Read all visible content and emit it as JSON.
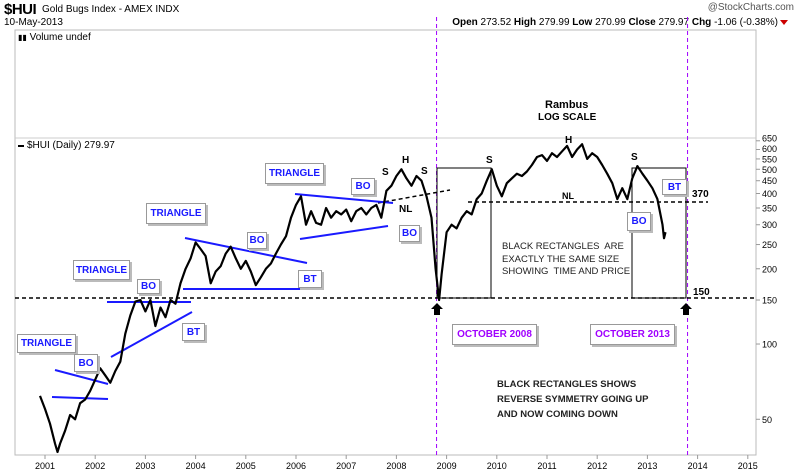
{
  "header": {
    "symbol": "$HUI",
    "name": "Gold Bugs Index - AMEX  INDX",
    "date": "10-May-2013",
    "copyright": "@StockCharts.com",
    "open_label": "Open",
    "open": "273.52",
    "high_label": "High",
    "high": "279.99",
    "low_label": "Low",
    "low": "270.99",
    "close_label": "Close",
    "close": "279.97",
    "chg_label": "Chg",
    "chg": "-1.06 (-0.38%)"
  },
  "volume_panel": {
    "label": "Volume undef"
  },
  "legend": {
    "label": "$HUI (Daily) 279.97"
  },
  "annotations": {
    "title": "Rambus",
    "subtitle": "LOG SCALE",
    "triangle": "TRIANGLE",
    "bo": "BO",
    "bt": "BT",
    "h": "H",
    "s": "S",
    "nl": "NL",
    "level_370": "370",
    "level_150": "150",
    "oct2008": "OCTOBER 2008",
    "oct2013": "OCTOBER 2013",
    "note1": "BLACK RECTANGLES  ARE\nEXACTLY THE SAME SIZE\nSHOWING  TIME AND PRICE",
    "note2": "BLACK RECTANGLES SHOWS\nREVERSE SYMMETRY GOING UP\nAND NOW COMING DOWN"
  },
  "colors": {
    "price": "#000000",
    "trendline": "#1a1aff",
    "event_line": "#a000ff",
    "grid": "#cccccc"
  },
  "chart_data": {
    "type": "line",
    "title": "$HUI Gold Bugs Index (Daily)",
    "yscale": "log",
    "ylim": [
      30,
      700
    ],
    "xlim": [
      2000.7,
      2015.3
    ],
    "x_ticks": [
      "2001",
      "2002",
      "2003",
      "2004",
      "2005",
      "2006",
      "2007",
      "2008",
      "2009",
      "2010",
      "2011",
      "2012",
      "2013",
      "2014",
      "2015"
    ],
    "y_ticks": [
      "50",
      "100",
      "150",
      "200",
      "250",
      "300",
      "350",
      "400",
      "450",
      "500",
      "550",
      "600",
      "650"
    ],
    "horizontal_levels": [
      370,
      150
    ],
    "event_dates": [
      2008.8,
      2013.8
    ],
    "series": [
      {
        "name": "$HUI",
        "points": [
          [
            2000.9,
            62
          ],
          [
            2001.0,
            55
          ],
          [
            2001.1,
            48
          ],
          [
            2001.2,
            40
          ],
          [
            2001.25,
            37
          ],
          [
            2001.3,
            40
          ],
          [
            2001.4,
            45
          ],
          [
            2001.5,
            52
          ],
          [
            2001.6,
            50
          ],
          [
            2001.7,
            58
          ],
          [
            2001.8,
            60
          ],
          [
            2001.9,
            65
          ],
          [
            2002.0,
            72
          ],
          [
            2002.1,
            80
          ],
          [
            2002.2,
            75
          ],
          [
            2002.3,
            70
          ],
          [
            2002.4,
            78
          ],
          [
            2002.5,
            85
          ],
          [
            2002.6,
            110
          ],
          [
            2002.7,
            130
          ],
          [
            2002.8,
            148
          ],
          [
            2002.9,
            150
          ],
          [
            2003.0,
            135
          ],
          [
            2003.1,
            150
          ],
          [
            2003.2,
            118
          ],
          [
            2003.3,
            140
          ],
          [
            2003.4,
            128
          ],
          [
            2003.5,
            150
          ],
          [
            2003.6,
            145
          ],
          [
            2003.7,
            175
          ],
          [
            2003.8,
            200
          ],
          [
            2003.9,
            220
          ],
          [
            2004.0,
            255
          ],
          [
            2004.1,
            240
          ],
          [
            2004.2,
            225
          ],
          [
            2004.3,
            175
          ],
          [
            2004.4,
            195
          ],
          [
            2004.5,
            205
          ],
          [
            2004.6,
            230
          ],
          [
            2004.7,
            245
          ],
          [
            2004.8,
            220
          ],
          [
            2004.9,
            200
          ],
          [
            2005.0,
            215
          ],
          [
            2005.1,
            195
          ],
          [
            2005.2,
            172
          ],
          [
            2005.3,
            185
          ],
          [
            2005.4,
            200
          ],
          [
            2005.5,
            210
          ],
          [
            2005.6,
            230
          ],
          [
            2005.7,
            250
          ],
          [
            2005.8,
            270
          ],
          [
            2005.9,
            320
          ],
          [
            2006.0,
            360
          ],
          [
            2006.1,
            390
          ],
          [
            2006.2,
            300
          ],
          [
            2006.3,
            340
          ],
          [
            2006.4,
            305
          ],
          [
            2006.5,
            300
          ],
          [
            2006.6,
            350
          ],
          [
            2006.7,
            320
          ],
          [
            2006.8,
            340
          ],
          [
            2006.9,
            330
          ],
          [
            2007.0,
            345
          ],
          [
            2007.1,
            310
          ],
          [
            2007.2,
            340
          ],
          [
            2007.3,
            350
          ],
          [
            2007.4,
            330
          ],
          [
            2007.5,
            350
          ],
          [
            2007.6,
            360
          ],
          [
            2007.7,
            320
          ],
          [
            2007.8,
            410
          ],
          [
            2007.9,
            430
          ],
          [
            2008.0,
            470
          ],
          [
            2008.1,
            500
          ],
          [
            2008.2,
            460
          ],
          [
            2008.3,
            430
          ],
          [
            2008.4,
            470
          ],
          [
            2008.5,
            450
          ],
          [
            2008.6,
            390
          ],
          [
            2008.7,
            320
          ],
          [
            2008.78,
            200
          ],
          [
            2008.85,
            150
          ],
          [
            2008.9,
            190
          ],
          [
            2009.0,
            280
          ],
          [
            2009.1,
            300
          ],
          [
            2009.2,
            290
          ],
          [
            2009.3,
            320
          ],
          [
            2009.4,
            340
          ],
          [
            2009.5,
            330
          ],
          [
            2009.6,
            380
          ],
          [
            2009.7,
            400
          ],
          [
            2009.8,
            450
          ],
          [
            2009.9,
            500
          ],
          [
            2010.0,
            430
          ],
          [
            2010.1,
            390
          ],
          [
            2010.2,
            440
          ],
          [
            2010.3,
            460
          ],
          [
            2010.4,
            480
          ],
          [
            2010.5,
            470
          ],
          [
            2010.6,
            490
          ],
          [
            2010.7,
            520
          ],
          [
            2010.8,
            560
          ],
          [
            2010.9,
            570
          ],
          [
            2011.0,
            540
          ],
          [
            2011.1,
            580
          ],
          [
            2011.2,
            560
          ],
          [
            2011.3,
            590
          ],
          [
            2011.4,
            620
          ],
          [
            2011.5,
            560
          ],
          [
            2011.6,
            600
          ],
          [
            2011.7,
            630
          ],
          [
            2011.8,
            550
          ],
          [
            2011.9,
            580
          ],
          [
            2012.0,
            560
          ],
          [
            2012.1,
            520
          ],
          [
            2012.2,
            480
          ],
          [
            2012.3,
            440
          ],
          [
            2012.4,
            380
          ],
          [
            2012.5,
            420
          ],
          [
            2012.6,
            380
          ],
          [
            2012.7,
            460
          ],
          [
            2012.8,
            515
          ],
          [
            2012.9,
            480
          ],
          [
            2013.0,
            450
          ],
          [
            2013.1,
            420
          ],
          [
            2013.2,
            380
          ],
          [
            2013.3,
            300
          ],
          [
            2013.33,
            265
          ],
          [
            2013.36,
            280
          ]
        ]
      }
    ]
  }
}
